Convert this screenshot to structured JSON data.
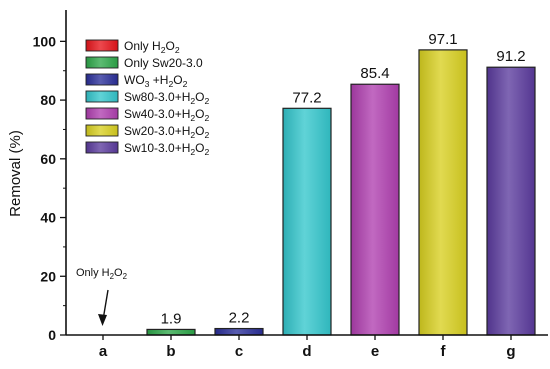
{
  "chart_data": {
    "type": "bar",
    "ylabel": "Removal (%)",
    "ylim": [
      0,
      110
    ],
    "yticks": [
      0,
      20,
      40,
      60,
      80,
      100
    ],
    "categories": [
      "a",
      "b",
      "c",
      "d",
      "e",
      "f",
      "g"
    ],
    "values": [
      0,
      1.9,
      2.2,
      77.2,
      85.4,
      97.1,
      91.2
    ],
    "value_labels": [
      "",
      "1.9",
      "2.2",
      "77.2",
      "85.4",
      "97.1",
      "91.2"
    ],
    "series_names": [
      "Only H2O2",
      "Only Sw20-3.0",
      "WO3 +H2O2",
      "Sw80-3.0+H2O2",
      "Sw40-3.0+H2O2",
      "Sw20-3.0+H2O2",
      "Sw10-3.0+H2O2"
    ],
    "colors": [
      "#e8141b",
      "#2ea84a",
      "#2a2f9a",
      "#33c6cc",
      "#b03fb0",
      "#d8d020",
      "#5b3b9e"
    ],
    "legend_position": "top-left",
    "annotation": "Only H2O2"
  }
}
